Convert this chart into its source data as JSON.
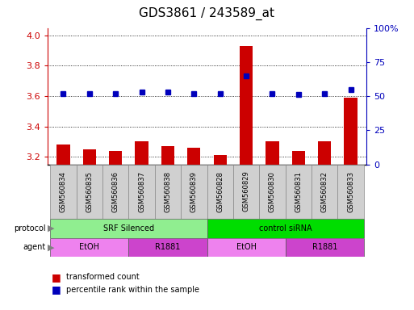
{
  "title": "GDS3861 / 243589_at",
  "samples": [
    "GSM560834",
    "GSM560835",
    "GSM560836",
    "GSM560837",
    "GSM560838",
    "GSM560839",
    "GSM560828",
    "GSM560829",
    "GSM560830",
    "GSM560831",
    "GSM560832",
    "GSM560833"
  ],
  "transformed_counts": [
    3.28,
    3.25,
    3.24,
    3.3,
    3.27,
    3.26,
    3.21,
    3.93,
    3.3,
    3.24,
    3.3,
    3.59
  ],
  "percentile_ranks": [
    52,
    52,
    52,
    53,
    53,
    52,
    52,
    65,
    52,
    51,
    52,
    55
  ],
  "ylim_left": [
    3.15,
    4.05
  ],
  "ylim_right": [
    0,
    100
  ],
  "yticks_left": [
    3.2,
    3.4,
    3.6,
    3.8,
    4.0
  ],
  "yticks_right": [
    0,
    25,
    50,
    75,
    100
  ],
  "ytick_right_labels": [
    "0",
    "25",
    "50",
    "75",
    "100%"
  ],
  "protocol_groups": [
    {
      "label": "SRF Silenced",
      "start": 0,
      "end": 5,
      "color": "#90EE90"
    },
    {
      "label": "control siRNA",
      "start": 6,
      "end": 11,
      "color": "#00DD00"
    }
  ],
  "agent_groups": [
    {
      "label": "EtOH",
      "start": 0,
      "end": 2,
      "color": "#EE82EE"
    },
    {
      "label": "R1881",
      "start": 3,
      "end": 5,
      "color": "#CC44CC"
    },
    {
      "label": "EtOH",
      "start": 6,
      "end": 8,
      "color": "#EE82EE"
    },
    {
      "label": "R1881",
      "start": 9,
      "end": 11,
      "color": "#CC44CC"
    }
  ],
  "bar_color": "#CC0000",
  "dot_color": "#0000BB",
  "bar_width": 0.5,
  "background_color": "#ffffff",
  "axis_label_color_left": "#CC0000",
  "axis_label_color_right": "#0000BB",
  "sample_box_color": "#D0D0D0",
  "sample_box_edge": "#888888",
  "title_fontsize": 11,
  "tick_fontsize": 8,
  "sample_fontsize": 6,
  "row_fontsize": 7,
  "legend_fontsize": 7
}
